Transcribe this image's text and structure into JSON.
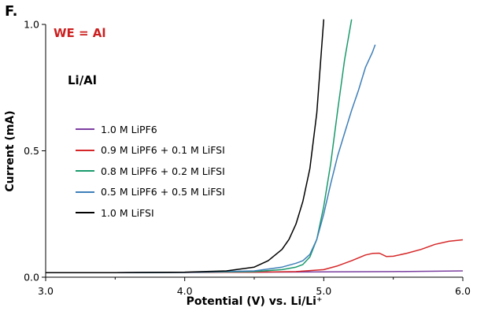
{
  "panel_label": "F.",
  "annotations": {
    "electrode": "WE = Al",
    "cell": "Li/Al"
  },
  "chart_data": {
    "type": "line",
    "title": "",
    "xlabel": "Potential (V) vs. Li/Li⁺",
    "ylabel": "Current (mA)",
    "xlim": [
      3.0,
      6.0
    ],
    "ylim": [
      0.0,
      1.0
    ],
    "xticks": [
      "3.0",
      "4.0",
      "5.0",
      "6.0"
    ],
    "yticks": [
      "0.0",
      "0.5",
      "1.0"
    ],
    "grid": false,
    "legend_position": "left-center",
    "series": [
      {
        "name": "1.0 M LiPF6",
        "color": "#7b3fa0",
        "x": [
          3.0,
          3.5,
          4.0,
          4.5,
          5.0,
          5.5,
          6.0
        ],
        "y": [
          0.018,
          0.018,
          0.019,
          0.02,
          0.021,
          0.022,
          0.025
        ]
      },
      {
        "name": "0.9 M LiPF6 + 0.1 M LiFSI",
        "color": "#d62728",
        "x": [
          3.0,
          3.5,
          4.0,
          4.5,
          4.8,
          5.0,
          5.1,
          5.2,
          5.3,
          5.35,
          5.4,
          5.45,
          5.5,
          5.6,
          5.7,
          5.8,
          5.9,
          6.0
        ],
        "y": [
          0.018,
          0.018,
          0.019,
          0.02,
          0.022,
          0.03,
          0.045,
          0.065,
          0.088,
          0.094,
          0.095,
          0.082,
          0.083,
          0.095,
          0.11,
          0.13,
          0.142,
          0.148
        ]
      },
      {
        "name": "0.8 M LiPF6 + 0.2 M LiFSI",
        "color": "#1a9a6c",
        "x": [
          3.0,
          3.5,
          4.0,
          4.5,
          4.7,
          4.8,
          4.85,
          4.9,
          4.95,
          5.0,
          5.05,
          5.1,
          5.15,
          5.2
        ],
        "y": [
          0.018,
          0.018,
          0.019,
          0.022,
          0.03,
          0.04,
          0.05,
          0.08,
          0.15,
          0.28,
          0.45,
          0.66,
          0.86,
          1.02
        ]
      },
      {
        "name": "0.5 M LiPF6 + 0.5 M LiFSI",
        "color": "#3f7fb8",
        "x": [
          3.0,
          3.5,
          4.0,
          4.5,
          4.7,
          4.8,
          4.85,
          4.9,
          4.95,
          5.0,
          5.05,
          5.1,
          5.15,
          5.2,
          5.25,
          5.3,
          5.35,
          5.37
        ],
        "y": [
          0.018,
          0.018,
          0.019,
          0.025,
          0.04,
          0.055,
          0.065,
          0.09,
          0.15,
          0.25,
          0.37,
          0.48,
          0.57,
          0.66,
          0.74,
          0.83,
          0.89,
          0.92
        ]
      },
      {
        "name": "1.0 M LiFSI",
        "color": "#000000",
        "x": [
          3.0,
          3.5,
          4.0,
          4.3,
          4.5,
          4.6,
          4.7,
          4.75,
          4.8,
          4.85,
          4.9,
          4.95,
          5.0
        ],
        "y": [
          0.018,
          0.018,
          0.02,
          0.025,
          0.04,
          0.065,
          0.11,
          0.15,
          0.21,
          0.3,
          0.43,
          0.65,
          1.02
        ]
      }
    ]
  }
}
